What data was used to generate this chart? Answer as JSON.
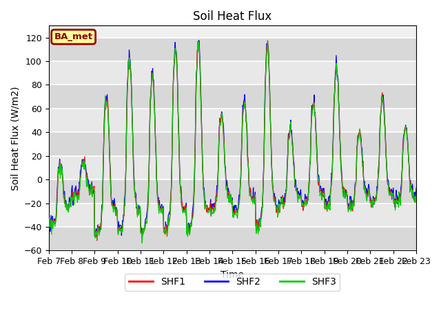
{
  "title": "Soil Heat Flux",
  "ylabel": "Soil Heat Flux (W/m2)",
  "xlabel": "Time",
  "ylim": [
    -60,
    130
  ],
  "yticks": [
    -60,
    -40,
    -20,
    0,
    20,
    40,
    60,
    80,
    100,
    120
  ],
  "series_names": [
    "SHF1",
    "SHF2",
    "SHF3"
  ],
  "series_colors": [
    "#FF0000",
    "#0000FF",
    "#00CC00"
  ],
  "label_text": "BA_met",
  "label_bg": "#FFFF99",
  "label_border": "#990000",
  "n_days": 16,
  "start_day": 7,
  "points_per_day": 48,
  "background_color": "#e8e8e8",
  "plot_bg": "#f0f0f0",
  "grid_color": "white",
  "title_fontsize": 12,
  "axis_fontsize": 10,
  "tick_fontsize": 9,
  "line_width": 0.9,
  "day_amplitudes": [
    10,
    15,
    68,
    103,
    88,
    110,
    113,
    55,
    65,
    113,
    42,
    65,
    95,
    40,
    68,
    43
  ],
  "day_min": [
    -37,
    -15,
    -45,
    -43,
    -43,
    -42,
    -43,
    -25,
    -28,
    -40,
    -22,
    -22,
    -22,
    -22,
    -20,
    -20
  ]
}
